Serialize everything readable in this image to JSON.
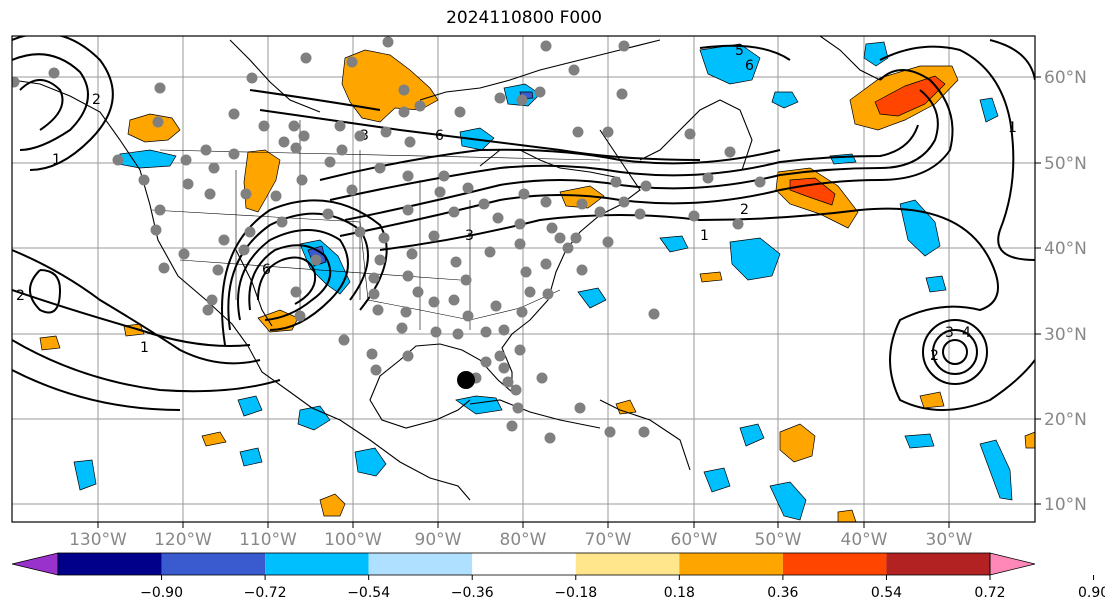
{
  "title": "2024110800 F000",
  "longitude_labels": [
    "130°W",
    "120°W",
    "110°W",
    "100°W",
    "90°W",
    "80°W",
    "70°W",
    "60°W",
    "50°W",
    "40°W",
    "30°W"
  ],
  "latitude_labels": [
    "60°N",
    "50°N",
    "40°N",
    "30°N",
    "20°N",
    "10°N"
  ],
  "colorbar": {
    "ticks": [
      "−0.90",
      "−0.72",
      "−0.54",
      "−0.36",
      "−0.18",
      "0.18",
      "0.36",
      "0.54",
      "0.72",
      "0.90"
    ],
    "colors": [
      "#9932cc",
      "#00008b",
      "#3a5bd0",
      "#00bfff",
      "#b0e0ff",
      "#ffffff",
      "#ffe68c",
      "#ffa500",
      "#ff4500",
      "#b22222",
      "#ff88b8"
    ]
  },
  "contour_labels": [
    "1",
    "2",
    "3",
    "4",
    "5",
    "6"
  ],
  "storm_marker": {
    "lon": -86.5,
    "lat": 24.7,
    "color": "#000000"
  },
  "stations_color": "#808080"
}
